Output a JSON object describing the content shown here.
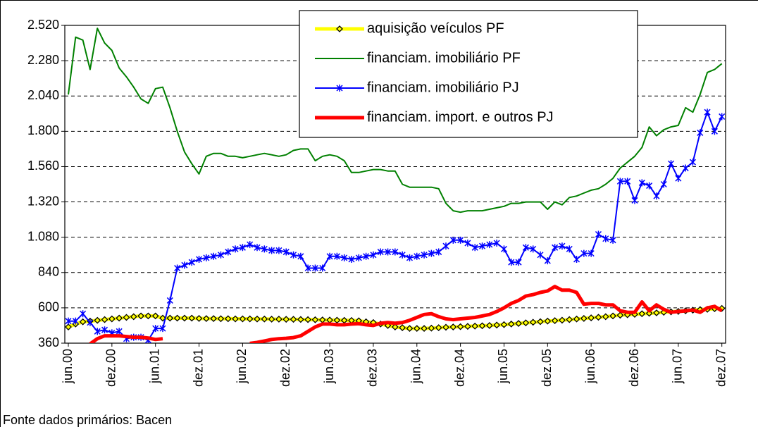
{
  "chart_data": {
    "type": "line",
    "source": "Fonte dados primários: Bacen",
    "categories": [
      "jun.00",
      null,
      null,
      null,
      null,
      null,
      "dez.00",
      null,
      null,
      null,
      null,
      null,
      "jun.01",
      null,
      null,
      null,
      null,
      null,
      "dez.01",
      null,
      null,
      null,
      null,
      null,
      "jun.02",
      null,
      null,
      null,
      null,
      null,
      "dez.02",
      null,
      null,
      null,
      null,
      null,
      "jun.03",
      null,
      null,
      null,
      null,
      null,
      "dez.03",
      null,
      null,
      null,
      null,
      null,
      "jun.04",
      null,
      null,
      null,
      null,
      null,
      "dez.04",
      null,
      null,
      null,
      null,
      null,
      "jun.05",
      null,
      null,
      null,
      null,
      null,
      "dez.05",
      null,
      null,
      null,
      null,
      null,
      "jun.06",
      null,
      null,
      null,
      null,
      null,
      "dez.06",
      null,
      null,
      null,
      null,
      null,
      "jun.07",
      null,
      null,
      null,
      null,
      null,
      "dez.07"
    ],
    "ylim": [
      360,
      2520
    ],
    "yticks": [
      360,
      600,
      840,
      {
        "value": 1080,
        "label": "1.080"
      },
      {
        "value": 1320,
        "label": "1.320"
      },
      {
        "value": 1560,
        "label": "1.560"
      },
      {
        "value": 1800,
        "label": "1.800"
      },
      {
        "value": 2040,
        "label": "2.040"
      },
      {
        "value": 2280,
        "label": "2.280"
      },
      {
        "value": 2520,
        "label": "2.520"
      }
    ],
    "grid": true,
    "legend": "upper center",
    "series": [
      {
        "name": "aquisição veículos PF",
        "color": "#ffff00",
        "marker": "diamond",
        "values": [
          470,
          490,
          505,
          510,
          515,
          520,
          525,
          530,
          535,
          540,
          545,
          545,
          545,
          530,
          530,
          530,
          530,
          530,
          528,
          527,
          527,
          526,
          526,
          525,
          525,
          525,
          524,
          524,
          523,
          523,
          522,
          522,
          521,
          520,
          519,
          518,
          517,
          516,
          515,
          514,
          512,
          505,
          500,
          490,
          480,
          470,
          465,
          460,
          460,
          460,
          462,
          465,
          468,
          470,
          472,
          474,
          476,
          478,
          480,
          483,
          486,
          490,
          494,
          498,
          502,
          506,
          510,
          513,
          516,
          520,
          524,
          528,
          532,
          536,
          540,
          545,
          550,
          553,
          556,
          560,
          563,
          566,
          570,
          573,
          576,
          580,
          584,
          588,
          590,
          594,
          596
        ]
      },
      {
        "name": "financiam. imobiliário PF",
        "color": "#008000",
        "values": [
          2050,
          2440,
          2420,
          2220,
          2500,
          2400,
          2350,
          2230,
          2170,
          2100,
          2020,
          1990,
          2090,
          2100,
          1960,
          1800,
          1660,
          1580,
          1510,
          1630,
          1650,
          1650,
          1630,
          1630,
          1620,
          1630,
          1640,
          1650,
          1640,
          1630,
          1640,
          1670,
          1680,
          1680,
          1600,
          1630,
          1640,
          1630,
          1600,
          1520,
          1520,
          1530,
          1540,
          1540,
          1530,
          1530,
          1440,
          1420,
          1420,
          1420,
          1420,
          1410,
          1310,
          1260,
          1250,
          1260,
          1260,
          1260,
          1270,
          1280,
          1290,
          1310,
          1310,
          1320,
          1320,
          1320,
          1270,
          1320,
          1300,
          1350,
          1360,
          1380,
          1400,
          1410,
          1440,
          1480,
          1550,
          1590,
          1630,
          1690,
          1830,
          1770,
          1810,
          1830,
          1840,
          1960,
          1930,
          2050,
          2200,
          2220,
          2260
        ]
      },
      {
        "name": "financiam. imobiliário PJ",
        "color": "#0000ff",
        "marker": "star",
        "values": [
          510,
          510,
          560,
          500,
          440,
          450,
          430,
          440,
          390,
          400,
          400,
          380,
          460,
          460,
          650,
          870,
          890,
          910,
          930,
          940,
          950,
          960,
          980,
          1000,
          1010,
          1030,
          1010,
          1000,
          990,
          990,
          980,
          960,
          950,
          870,
          870,
          870,
          950,
          950,
          940,
          930,
          940,
          950,
          960,
          980,
          980,
          980,
          960,
          940,
          950,
          960,
          970,
          980,
          1020,
          1060,
          1060,
          1040,
          1010,
          1020,
          1030,
          1040,
          1000,
          910,
          910,
          1010,
          1000,
          960,
          920,
          1010,
          1020,
          1000,
          930,
          970,
          970,
          1100,
          1070,
          1060,
          1460,
          1460,
          1330,
          1450,
          1430,
          1360,
          1440,
          1580,
          1480,
          1550,
          1590,
          1790,
          1930,
          1800,
          1900
        ]
      },
      {
        "name": "financiam. import. e outros PJ",
        "color": "#ff0000",
        "values": [
          null,
          null,
          null,
          355,
          390,
          410,
          410,
          410,
          405,
          400,
          400,
          395,
          385,
          390,
          null,
          null,
          null,
          null,
          null,
          null,
          null,
          null,
          null,
          null,
          null,
          358,
          365,
          375,
          385,
          390,
          393,
          398,
          410,
          440,
          470,
          490,
          490,
          485,
          485,
          490,
          492,
          485,
          480,
          495,
          500,
          495,
          500,
          515,
          535,
          555,
          560,
          540,
          525,
          520,
          525,
          530,
          535,
          545,
          555,
          575,
          600,
          630,
          650,
          680,
          690,
          705,
          715,
          745,
          720,
          720,
          705,
          625,
          630,
          630,
          620,
          620,
          580,
          570,
          570,
          640,
          580,
          620,
          590,
          570,
          575,
          580,
          585,
          570,
          600,
          610,
          580
        ]
      }
    ]
  }
}
